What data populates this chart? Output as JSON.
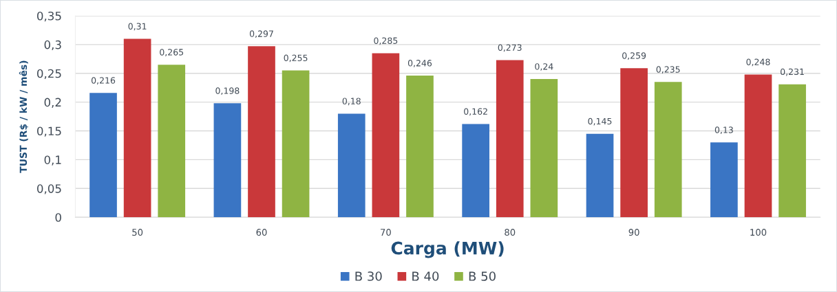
{
  "chart_data": {
    "type": "bar",
    "xlabel": "Carga (MW)",
    "ylabel": "TUST (R$ / kW / mês)",
    "categories": [
      "50",
      "60",
      "70",
      "80",
      "90",
      "100"
    ],
    "series": [
      {
        "name": "B 30",
        "color": "#3a75c4",
        "values": [
          0.216,
          0.198,
          0.18,
          0.162,
          0.145,
          0.13
        ],
        "value_labels": [
          "0,216",
          "0,198",
          "0,18",
          "0,162",
          "0,145",
          "0,13"
        ]
      },
      {
        "name": "B 40",
        "color": "#c9383a",
        "values": [
          0.31,
          0.297,
          0.285,
          0.273,
          0.259,
          0.248
        ],
        "value_labels": [
          "0,31",
          "0,297",
          "0,285",
          "0,273",
          "0,259",
          "0,248"
        ]
      },
      {
        "name": "B 50",
        "color": "#8fb443",
        "values": [
          0.265,
          0.255,
          0.246,
          0.24,
          0.235,
          0.231
        ],
        "value_labels": [
          "0,265",
          "0,255",
          "0,246",
          "0,24",
          "0,235",
          "0,231"
        ]
      }
    ],
    "ylim": [
      0,
      0.35
    ],
    "yticks": [
      0,
      {
        "value": 0.05,
        "label": "0,05"
      },
      {
        "value": 0.1,
        "label": "0,1"
      },
      {
        "value": 0.15,
        "label": "0,15"
      },
      {
        "value": 0.2,
        "label": "0,2"
      },
      {
        "value": 0.25,
        "label": "0,25"
      },
      {
        "value": 0.3,
        "label": "0,3"
      },
      {
        "value": 0.35,
        "label": "0,35"
      }
    ],
    "grid": "y",
    "legend": "bottom"
  }
}
